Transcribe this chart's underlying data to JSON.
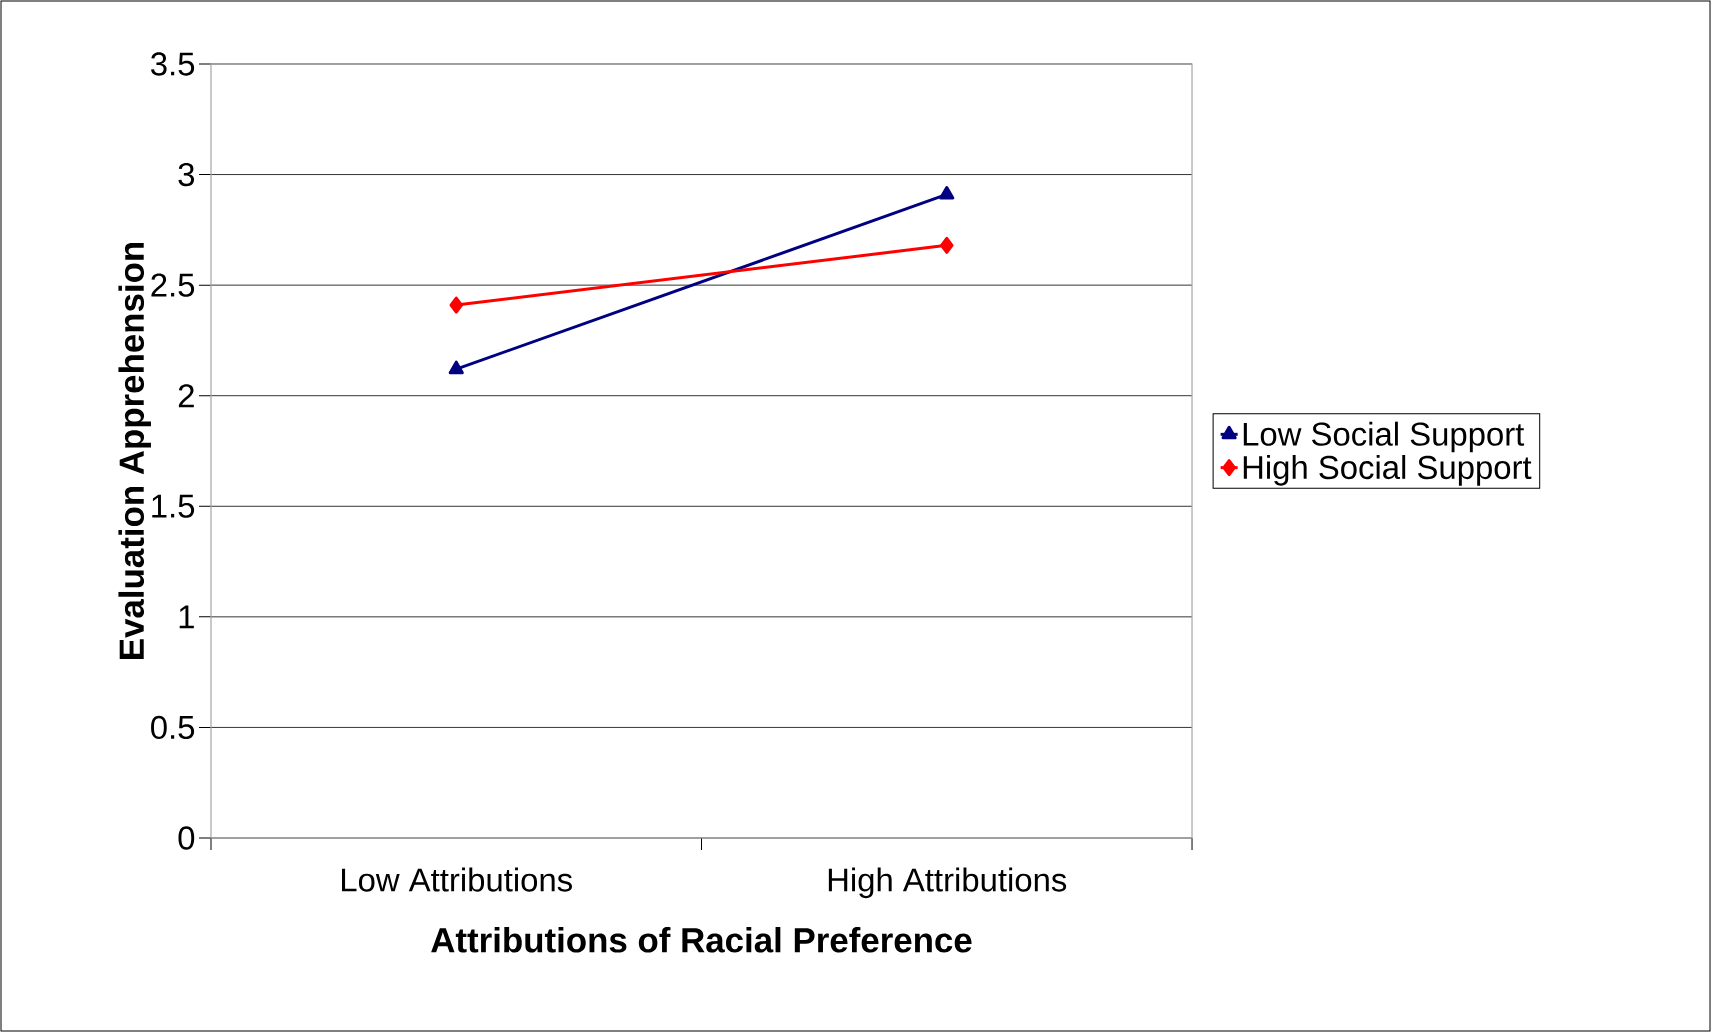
{
  "chart_data": {
    "type": "line",
    "xlabel": "Attributions of Racial Preference",
    "ylabel": "Evaluation Apprehension",
    "categories": [
      "Low Attributions",
      "High Attributions"
    ],
    "series": [
      {
        "name": "Low Social Support",
        "color": "#000080",
        "values": [
          2.12,
          2.91
        ],
        "marker": "triangle"
      },
      {
        "name": "High Social Support",
        "color": "#ff0000",
        "values": [
          2.41,
          2.68
        ],
        "marker": "diamond"
      }
    ],
    "ylim": [
      0,
      3.5
    ],
    "yticks": [
      0,
      0.5,
      1,
      1.5,
      2,
      2.5,
      3,
      3.5
    ],
    "grid": "y",
    "legend": "right",
    "line_style": "solid"
  }
}
